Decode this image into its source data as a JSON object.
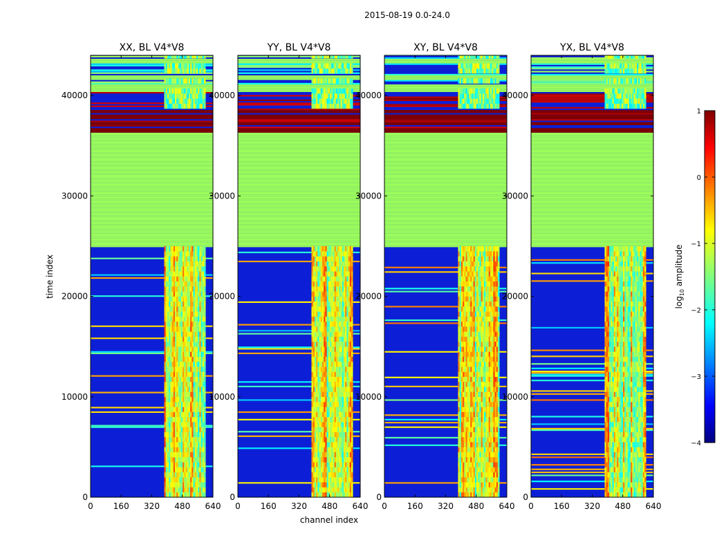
{
  "chart_data": {
    "type": "heatmap",
    "title": "2015-08-19 0.0-24.0",
    "xlabel": "channel index",
    "ylabel": "time index",
    "xlim": [
      0,
      640
    ],
    "ylim": [
      0,
      44000
    ],
    "xticks": [
      "0",
      "160",
      "320",
      "480",
      "640"
    ],
    "yticks": [
      "0",
      "10000",
      "20000",
      "30000",
      "40000"
    ],
    "ytick_values": [
      0,
      10000,
      20000,
      30000,
      40000
    ],
    "xtick_values": [
      0,
      160,
      320,
      480,
      640
    ],
    "panels": [
      {
        "title": "XX, BL V4*V8"
      },
      {
        "title": "YY, BL V4*V8"
      },
      {
        "title": "XY, BL V4*V8"
      },
      {
        "title": "YX, BL V4*V8"
      }
    ],
    "colorbar": {
      "label_prefix": "log",
      "label_sub": "10",
      "label_suffix": " amplitude",
      "range": [
        -4,
        1
      ],
      "ticks": [
        "1",
        "0",
        "−1",
        "−2",
        "−3",
        "−4"
      ],
      "tick_values": [
        1,
        0,
        -1,
        -2,
        -3,
        -4
      ],
      "colormap": "jet"
    },
    "bands": {
      "flagged_time_ranges": [
        [
          24800,
          36200
        ],
        [
          40300,
          41000
        ],
        [
          41500,
          41900
        ],
        [
          43100,
          43600
        ]
      ],
      "bright_time_ranges": [
        [
          36300,
          36700
        ],
        [
          37000,
          37300
        ],
        [
          37600,
          38000
        ],
        [
          38200,
          38500
        ]
      ],
      "rfi_channel_range": [
        385,
        595
      ]
    },
    "colors": {
      "background_low": "#0d1fd6",
      "flagged": "#9cff5a",
      "bright": "#7f0000",
      "axis": "#000000"
    }
  }
}
